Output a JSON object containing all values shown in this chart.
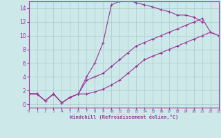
{
  "xlabel": "Windchill (Refroidissement éolien,°C)",
  "background_color": "#cce8e8",
  "grid_color": "#aacccc",
  "line_color": "#993399",
  "xlim": [
    0,
    23
  ],
  "ylim": [
    -0.5,
    15
  ],
  "xticks": [
    0,
    1,
    2,
    3,
    4,
    5,
    6,
    7,
    8,
    9,
    10,
    11,
    12,
    13,
    14,
    15,
    16,
    17,
    18,
    19,
    20,
    21,
    22,
    23
  ],
  "yticks": [
    0,
    2,
    4,
    6,
    8,
    10,
    12,
    14
  ],
  "l1_x": [
    0,
    1,
    2,
    3,
    4,
    5,
    6,
    7,
    8,
    9,
    10,
    11,
    12,
    13,
    14,
    15,
    16,
    17,
    18,
    19,
    20,
    21
  ],
  "l1_y": [
    1.5,
    1.5,
    0.5,
    1.5,
    0.2,
    1.0,
    1.5,
    4.0,
    6.0,
    9.0,
    14.5,
    15.0,
    15.2,
    14.8,
    14.5,
    14.2,
    13.8,
    13.5,
    13.0,
    13.0,
    12.7,
    12.0
  ],
  "l2_x": [
    0,
    1,
    2,
    3,
    4,
    5,
    6,
    7,
    8,
    9,
    10,
    11,
    12,
    13,
    14,
    15,
    16,
    17,
    18,
    19,
    20,
    21,
    22,
    23
  ],
  "l2_y": [
    1.5,
    1.5,
    0.5,
    1.5,
    0.2,
    1.0,
    1.5,
    3.5,
    4.0,
    4.5,
    5.5,
    6.5,
    7.5,
    8.5,
    9.0,
    9.5,
    10.0,
    10.5,
    11.0,
    11.5,
    12.0,
    12.5,
    10.5,
    10.0
  ],
  "l3_x": [
    0,
    1,
    2,
    3,
    4,
    5,
    6,
    7,
    8,
    9,
    10,
    11,
    12,
    13,
    14,
    15,
    16,
    17,
    18,
    19,
    20,
    21,
    22,
    23
  ],
  "l3_y": [
    1.5,
    1.5,
    0.5,
    1.5,
    0.2,
    1.0,
    1.5,
    1.5,
    1.8,
    2.2,
    2.8,
    3.5,
    4.5,
    5.5,
    6.5,
    7.0,
    7.5,
    8.0,
    8.5,
    9.0,
    9.5,
    10.0,
    10.5,
    10.0
  ]
}
